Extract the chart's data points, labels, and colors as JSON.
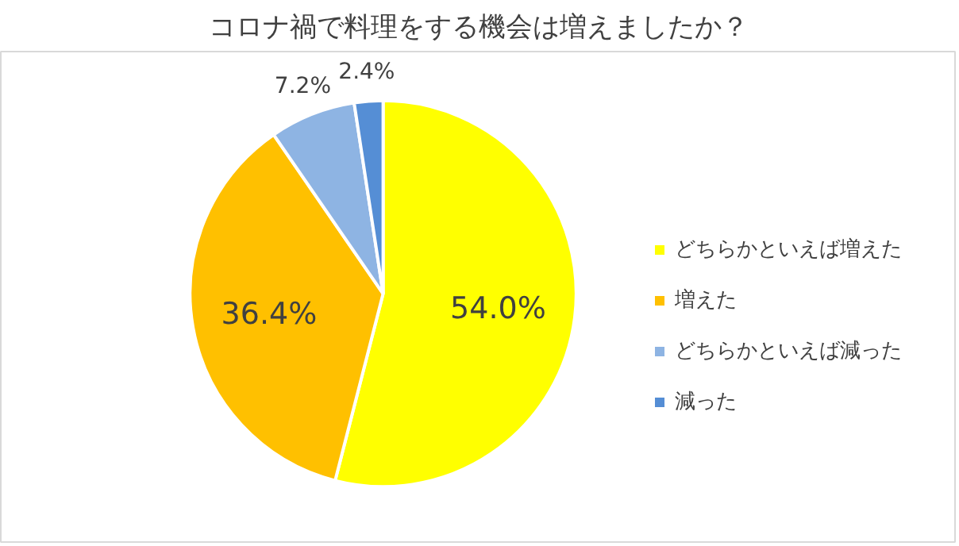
{
  "chart_data": {
    "type": "pie",
    "title": "コロナ禍で料理をする機会は増えましたか？",
    "categories": [
      "どちらかといえば増えた",
      "増えた",
      "どちらかといえば減った",
      "減った"
    ],
    "values": [
      54.0,
      36.4,
      7.2,
      2.4
    ],
    "colors": [
      "#ffff00",
      "#ffc000",
      "#8eb4e3",
      "#558ed5"
    ],
    "value_labels": [
      "54.0%",
      "36.4%",
      "7.2%",
      "2.4%"
    ],
    "legend": "right"
  }
}
